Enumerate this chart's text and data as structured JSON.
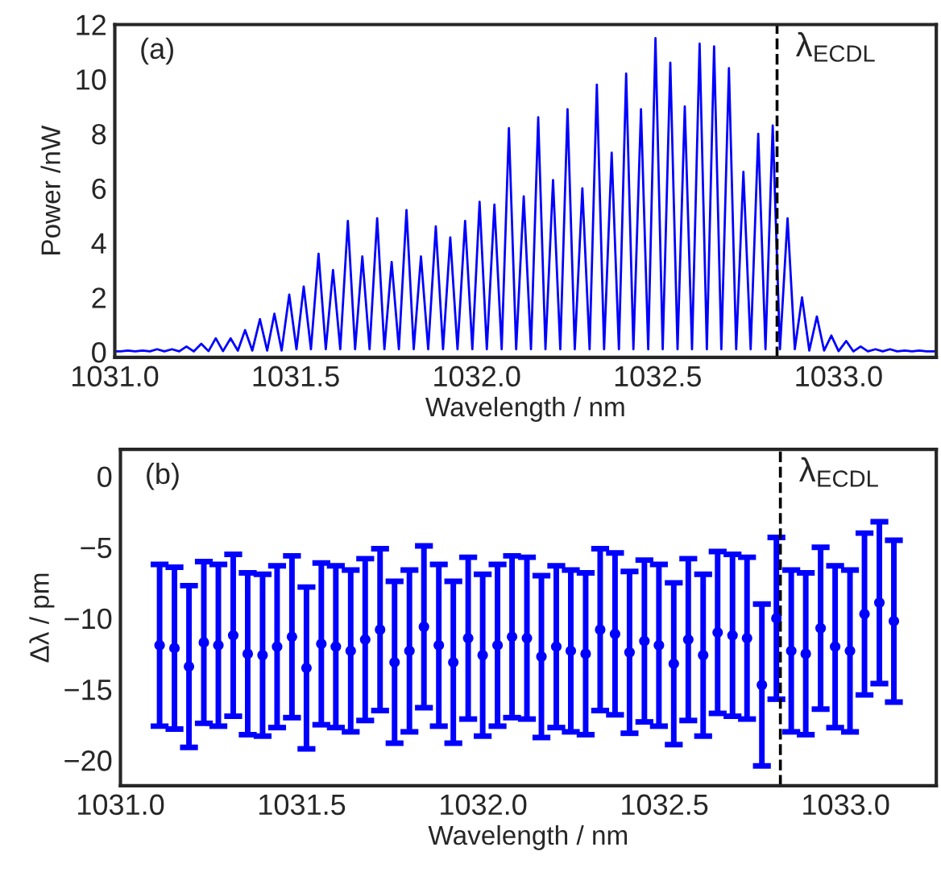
{
  "chart_data": [
    {
      "type": "line",
      "xlabel": "Wavelength / nm",
      "ylabel": "Power /nW",
      "annotations": [
        "(a)"
      ],
      "xlim": [
        1031.0,
        1033.27
      ],
      "ylim": [
        -0.2,
        12
      ],
      "xticks": [
        {
          "value": 1031.0,
          "label": "1031.0"
        },
        {
          "value": 1031.5,
          "label": "1031.5"
        },
        {
          "value": 1032.0,
          "label": "1032.0"
        },
        {
          "value": 1032.5,
          "label": "1032.5"
        },
        {
          "value": 1033.0,
          "label": "1033.0"
        }
      ],
      "yticks": [
        0,
        2,
        4,
        6,
        8,
        10,
        12
      ],
      "ref_lines": [
        {
          "axis": "x",
          "value": 1032.83,
          "label": "λ$_{ECDL}$",
          "color": "#000000",
          "line_style": "dashed"
        }
      ],
      "marker": "none",
      "line_style": "solid",
      "series": [
        {
          "color": "#0000ff",
          "x": [
            1031.0,
            1031.016,
            1031.036,
            1031.056,
            1031.077,
            1031.097,
            1031.117,
            1031.137,
            1031.158,
            1031.178,
            1031.198,
            1031.218,
            1031.239,
            1031.259,
            1031.279,
            1031.299,
            1031.32,
            1031.34,
            1031.36,
            1031.38,
            1031.401,
            1031.421,
            1031.441,
            1031.461,
            1031.482,
            1031.502,
            1031.522,
            1031.542,
            1031.563,
            1031.583,
            1031.603,
            1031.623,
            1031.644,
            1031.664,
            1031.684,
            1031.704,
            1031.725,
            1031.745,
            1031.765,
            1031.785,
            1031.806,
            1031.826,
            1031.846,
            1031.866,
            1031.887,
            1031.907,
            1031.927,
            1031.947,
            1031.968,
            1031.988,
            1032.008,
            1032.028,
            1032.049,
            1032.069,
            1032.089,
            1032.109,
            1032.13,
            1032.15,
            1032.17,
            1032.19,
            1032.211,
            1032.231,
            1032.251,
            1032.271,
            1032.292,
            1032.312,
            1032.332,
            1032.352,
            1032.373,
            1032.393,
            1032.413,
            1032.433,
            1032.454,
            1032.474,
            1032.494,
            1032.514,
            1032.535,
            1032.555,
            1032.575,
            1032.595,
            1032.616,
            1032.636,
            1032.656,
            1032.676,
            1032.697,
            1032.717,
            1032.737,
            1032.757,
            1032.778,
            1032.798,
            1032.818,
            1032.838,
            1032.859,
            1032.879,
            1032.899,
            1032.919,
            1032.94,
            1032.96,
            1032.98,
            1033.0,
            1033.021,
            1033.041,
            1033.061,
            1033.081,
            1033.102,
            1033.122,
            1033.142,
            1033.162,
            1033.183,
            1033.203,
            1033.223,
            1033.243,
            1033.27
          ],
          "values": [
            0.02,
            0.02,
            0.05,
            0.02,
            0.05,
            0.02,
            0.1,
            0.02,
            0.1,
            0.02,
            0.2,
            0.02,
            0.3,
            0.03,
            0.5,
            0.03,
            0.5,
            0.05,
            0.8,
            0.05,
            1.2,
            0.05,
            1.4,
            0.05,
            2.1,
            0.1,
            2.4,
            0.1,
            3.6,
            0.1,
            3.0,
            0.1,
            4.8,
            0.1,
            3.5,
            0.1,
            4.9,
            0.1,
            3.3,
            0.1,
            5.2,
            0.1,
            3.5,
            0.1,
            4.6,
            0.1,
            4.2,
            0.1,
            4.8,
            0.1,
            5.5,
            0.1,
            5.4,
            0.1,
            8.2,
            0.1,
            5.7,
            0.1,
            8.6,
            0.1,
            6.3,
            0.1,
            8.9,
            0.1,
            6.0,
            0.1,
            9.8,
            0.1,
            7.3,
            0.1,
            10.2,
            0.1,
            8.9,
            0.1,
            11.5,
            0.1,
            10.6,
            0.1,
            9.0,
            0.1,
            11.3,
            0.1,
            11.2,
            0.1,
            10.4,
            0.1,
            6.6,
            0.1,
            8.0,
            0.1,
            8.3,
            0.1,
            4.9,
            0.1,
            2.0,
            0.05,
            1.3,
            0.05,
            0.6,
            0.03,
            0.4,
            0.02,
            0.2,
            0.02,
            0.1,
            0.02,
            0.1,
            0.02,
            0.05,
            0.02,
            0.05,
            0.02,
            0.02
          ]
        }
      ]
    },
    {
      "type": "scatter",
      "xlabel": "Wavelength / nm",
      "ylabel": "Δλ / pm",
      "annotations": [
        "(b)"
      ],
      "xlim": [
        1031.0,
        1033.25
      ],
      "ylim": [
        -21.8,
        1.9
      ],
      "xticks": [
        {
          "value": 1031.0,
          "label": "1031.0"
        },
        {
          "value": 1031.5,
          "label": "1031.5"
        },
        {
          "value": 1032.0,
          "label": "1032.0"
        },
        {
          "value": 1032.5,
          "label": "1032.5"
        },
        {
          "value": 1033.0,
          "label": "1033.0"
        }
      ],
      "yticks": [
        0,
        {
          "value": -5,
          "label": "−5"
        },
        {
          "value": -10,
          "label": "−10"
        },
        {
          "value": -15,
          "label": "−15"
        },
        {
          "value": -20,
          "label": "−20"
        }
      ],
      "ref_lines": [
        {
          "axis": "x",
          "value": 1032.82,
          "label": "λ$_{ECDL}$",
          "color": "#000000",
          "line_style": "dashed"
        }
      ],
      "marker": "circle",
      "series": [
        {
          "color": "#0000ff",
          "x": [
            1031.108,
            1031.149,
            1031.189,
            1031.23,
            1031.27,
            1031.311,
            1031.351,
            1031.392,
            1031.432,
            1031.473,
            1031.513,
            1031.554,
            1031.594,
            1031.635,
            1031.675,
            1031.716,
            1031.756,
            1031.797,
            1031.837,
            1031.878,
            1031.918,
            1031.959,
            1031.999,
            1032.04,
            1032.08,
            1032.121,
            1032.161,
            1032.202,
            1032.242,
            1032.283,
            1032.323,
            1032.364,
            1032.404,
            1032.445,
            1032.485,
            1032.526,
            1032.566,
            1032.607,
            1032.647,
            1032.688,
            1032.728,
            1032.769,
            1032.809,
            1032.85,
            1032.89,
            1032.931,
            1032.971,
            1033.012,
            1033.052,
            1033.093,
            1033.133
          ],
          "values": [
            -11.9,
            -12.1,
            -13.4,
            -11.7,
            -11.9,
            -11.2,
            -12.5,
            -12.6,
            -12.0,
            -11.3,
            -13.5,
            -11.8,
            -12.0,
            -12.3,
            -11.5,
            -10.8,
            -13.1,
            -12.3,
            -10.6,
            -11.9,
            -13.1,
            -11.4,
            -12.6,
            -11.9,
            -11.3,
            -11.4,
            -12.7,
            -12.0,
            -12.3,
            -12.5,
            -10.8,
            -11.1,
            -12.4,
            -11.6,
            -11.9,
            -13.2,
            -11.5,
            -12.6,
            -11.0,
            -11.2,
            -11.4,
            -14.7,
            -10.0,
            -12.3,
            -12.5,
            -10.7,
            -12.0,
            -12.3,
            -9.7,
            -8.9,
            -10.2
          ],
          "errors": [
            5.7,
            5.7,
            5.7,
            5.7,
            5.7,
            5.7,
            5.7,
            5.7,
            5.7,
            5.7,
            5.7,
            5.7,
            5.7,
            5.7,
            5.7,
            5.7,
            5.7,
            5.7,
            5.7,
            5.7,
            5.7,
            5.7,
            5.7,
            5.7,
            5.7,
            5.7,
            5.7,
            5.7,
            5.7,
            5.7,
            5.7,
            5.7,
            5.7,
            5.7,
            5.7,
            5.7,
            5.7,
            5.7,
            5.7,
            5.7,
            5.7,
            5.7,
            5.7,
            5.7,
            5.7,
            5.7,
            5.7,
            5.7,
            5.7,
            5.7,
            5.7
          ]
        }
      ]
    }
  ]
}
